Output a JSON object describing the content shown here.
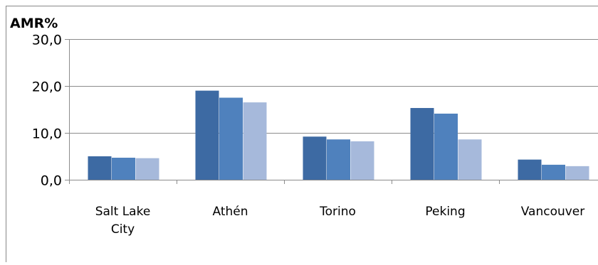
{
  "chart_data": {
    "type": "bar",
    "title": "",
    "ylabel": "AMR%",
    "xlabel": "",
    "categories": [
      "Salt Lake City",
      "Athén",
      "Torino",
      "Peking",
      "Vancouver"
    ],
    "category_label_lines": [
      [
        "Salt Lake",
        "City"
      ],
      [
        "Athén"
      ],
      [
        "Torino"
      ],
      [
        "Peking"
      ],
      [
        "Vancouver"
      ]
    ],
    "series": [
      {
        "values": [
          5.0,
          19.0,
          9.2,
          15.3,
          4.3
        ],
        "color": "#3d6aa3"
      },
      {
        "values": [
          4.7,
          17.5,
          8.6,
          14.1,
          3.2
        ],
        "color": "#4f81bd"
      },
      {
        "values": [
          4.6,
          16.5,
          8.2,
          8.6,
          2.9
        ],
        "color": "#a6b9db"
      }
    ],
    "ylim": [
      0,
      30
    ],
    "yticks": [
      "0,0",
      "10,0",
      "20,0",
      "30,0"
    ],
    "ytick_values": [
      0,
      10,
      20,
      30
    ],
    "grid": true,
    "legend": false
  }
}
